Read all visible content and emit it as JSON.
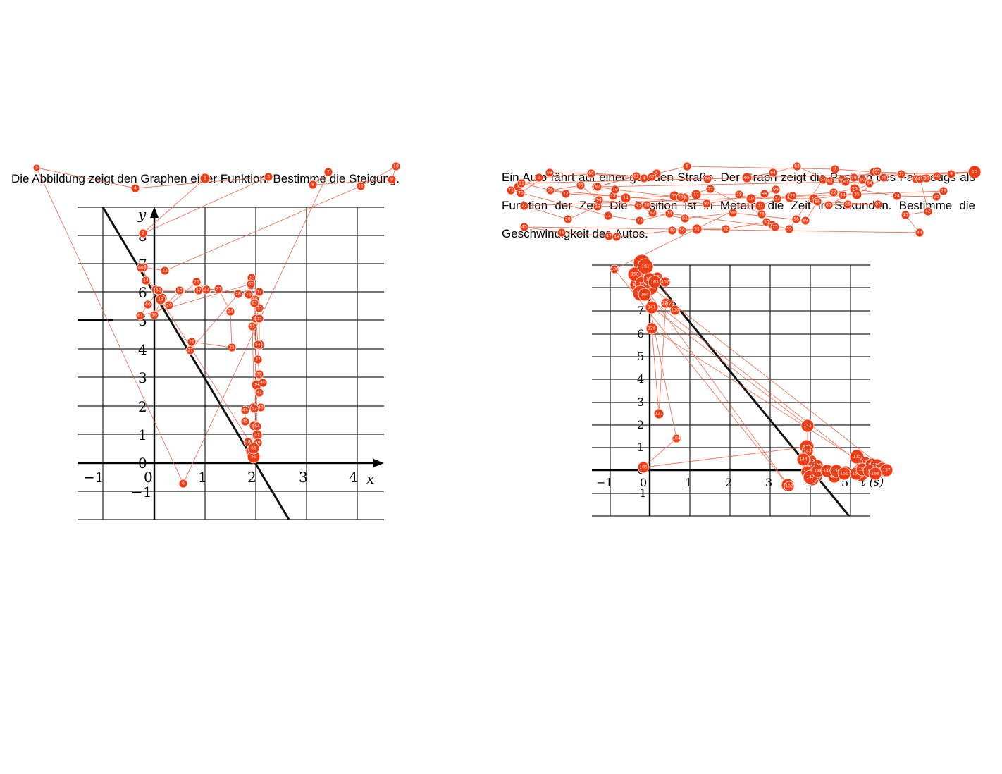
{
  "colors": {
    "fixation": "#f23c14",
    "saccade": "#f25a3a",
    "grid": "#111111",
    "axis": "#000000",
    "graph_line": "#111111"
  },
  "left_task": {
    "text": "Die Abbildung zeigt den Graphen einer Funktion. Bestimme die Steigung.",
    "graph": {
      "x_axis_label": "x",
      "y_axis_label": "y",
      "x_ticks": [
        "−1",
        "0",
        "1",
        "2",
        "3",
        "4"
      ],
      "y_ticks": [
        "8",
        "7",
        "6",
        "5",
        "4",
        "3",
        "2",
        "1",
        "0",
        "−1"
      ],
      "line": {
        "x": [
          -1,
          2.7
        ],
        "y": [
          8.8,
          -2
        ]
      }
    }
  },
  "right_task": {
    "text": "Ein Auto fährt auf einer geraden Straße. Der Graph zeigt die Position des Fahrzeugs als Funktion der Zeit. Die Position ist in Metern, die Zeit in Sekunden. Bestimme die Geschwindigkeit des Autos.",
    "graph": {
      "x_axis_label": "t (s)",
      "y_axis_label": "",
      "x_ticks": [
        "−1",
        "0",
        "1",
        "2",
        "3",
        "4",
        "5"
      ],
      "y_ticks": [
        "7",
        "6",
        "5",
        "4",
        "3",
        "2",
        "1",
        "0",
        "−1"
      ],
      "line": {
        "x": [
          0,
          5
        ],
        "y": [
          8.5,
          -2
        ]
      }
    }
  },
  "fixation_labels": {
    "left": [
      "1",
      "2",
      "3",
      "4",
      "5",
      "6",
      "7",
      "8",
      "9",
      "10",
      "11",
      "12",
      "13",
      "14",
      "15",
      "16",
      "17",
      "18",
      "19",
      "20",
      "21",
      "22",
      "23",
      "24",
      "25",
      "26",
      "27",
      "28",
      "29",
      "30",
      "31",
      "32",
      "33",
      "34",
      "35",
      "36",
      "37",
      "38",
      "39",
      "40",
      "41",
      "42",
      "43",
      "44",
      "45",
      "46",
      "47",
      "48",
      "49",
      "50",
      "51",
      "52",
      "53",
      "54",
      "55",
      "56",
      "57",
      "58",
      "59",
      "60",
      "61",
      "62",
      "63",
      "64",
      "65",
      "66"
    ],
    "right": [
      "1",
      "2",
      "3",
      "4",
      "5",
      "6",
      "7",
      "8",
      "9",
      "10",
      "11",
      "12",
      "13",
      "14",
      "15",
      "16",
      "17",
      "18",
      "19",
      "20",
      "21",
      "22",
      "23",
      "24",
      "25",
      "26",
      "27",
      "28",
      "29",
      "30",
      "31",
      "32",
      "33",
      "34",
      "35",
      "36",
      "37",
      "38",
      "39",
      "40",
      "41",
      "42",
      "43",
      "44",
      "45",
      "46",
      "47",
      "48",
      "49",
      "50",
      "51",
      "52",
      "53",
      "54",
      "55",
      "56",
      "57",
      "58",
      "59",
      "60",
      "61",
      "62",
      "63",
      "64",
      "65",
      "66",
      "67",
      "68",
      "69",
      "70",
      "71",
      "72",
      "73",
      "74",
      "75",
      "76",
      "77",
      "78",
      "79",
      "80",
      "81",
      "82",
      "83",
      "84",
      "85",
      "86",
      "87",
      "88",
      "89",
      "90",
      "91",
      "92",
      "93",
      "94",
      "95",
      "96",
      "97",
      "98",
      "99",
      "100",
      "101",
      "102",
      "103",
      "104",
      "105",
      "106",
      "107",
      "108",
      "109",
      "110",
      "111",
      "112",
      "113",
      "114",
      "115",
      "116",
      "117",
      "118",
      "119",
      "120",
      "121",
      "122",
      "123",
      "124",
      "125",
      "126",
      "127",
      "128",
      "129",
      "130",
      "131",
      "132",
      "133",
      "134",
      "135",
      "136",
      "137",
      "138",
      "139",
      "140",
      "141",
      "142",
      "143",
      "144",
      "145",
      "146",
      "147",
      "148",
      "149",
      "150",
      "151",
      "152",
      "153",
      "154",
      "155",
      "156",
      "157",
      "158",
      "159",
      "160",
      "161",
      "162",
      "163",
      "164",
      "165",
      "166",
      "167",
      "168"
    ]
  }
}
